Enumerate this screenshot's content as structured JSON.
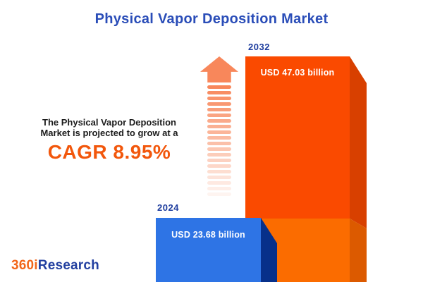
{
  "title": "Physical Vapor Deposition Market",
  "annotation": {
    "line1": "The Physical Vapor Deposition",
    "line2": "Market is projected to grow at a",
    "cagr_label": "CAGR 8.95%"
  },
  "bars": {
    "y2024": {
      "year": "2024",
      "value_label": "USD 23.68 billion"
    },
    "y2032": {
      "year": "2032",
      "value_label": "USD 47.03 billion"
    }
  },
  "arrow": {
    "dash_count": 20,
    "color": "#F8875B"
  },
  "logo": {
    "part1": "360i",
    "part2": "Research"
  },
  "colors": {
    "title_blue": "#2A4DB8",
    "year_label_blue": "#1E3D9E",
    "cagr_orange": "#F2570C",
    "annotation_text": "#1C1C1C",
    "bar_2032_front": "#FA4A00",
    "bar_2032_front_base": "#FB6C00",
    "bar_2032_side": "#D84000",
    "bar_2032_side_base": "#DC5A00",
    "bar_2024_front": "#2E74E5",
    "bar_2024_side": "#07308A",
    "bar_value_text": "#FFFFFF",
    "logo_orange": "#F2661A",
    "logo_blue": "#2340A0",
    "background": "#FFFFFF"
  },
  "chart_data": {
    "type": "bar",
    "title": "Physical Vapor Deposition Market",
    "categories": [
      "2024",
      "2032"
    ],
    "values": [
      23.68,
      47.03
    ],
    "unit": "USD billion",
    "value_labels": [
      "USD 23.68 billion",
      "USD 47.03 billion"
    ],
    "cagr_percent": 8.95,
    "orientation": "vertical",
    "axes": "none",
    "grid": false,
    "legend": "none",
    "notes": "3D-style bars; 2032 bar shows 2024 base segment in lighter orange; dashed fading arrow indicates growth"
  }
}
